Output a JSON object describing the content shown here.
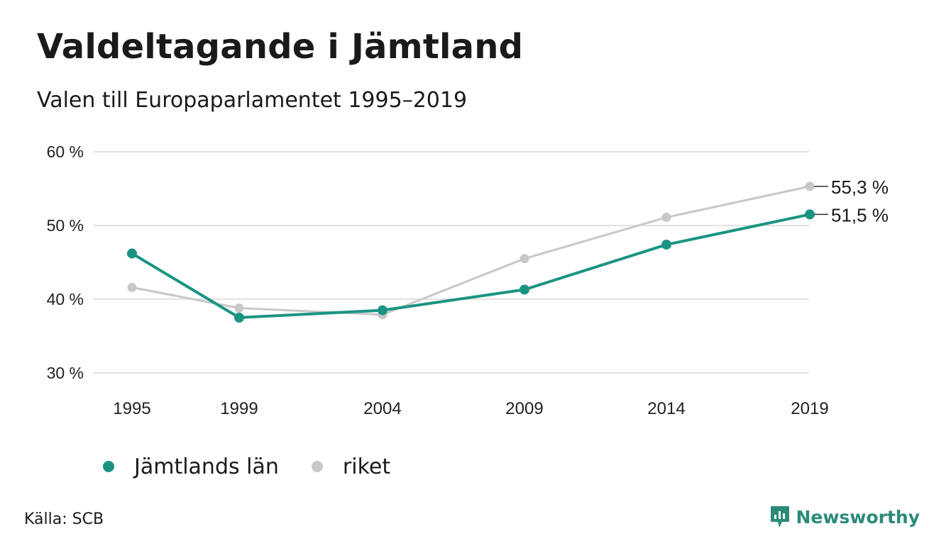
{
  "header": {
    "title": "Valdeltagande i Jämtland",
    "subtitle": "Valen till Europaparlamentet 1995–2019"
  },
  "chart_data": {
    "type": "line",
    "title": "Valdeltagande i Jämtland",
    "subtitle": "Valen till Europaparlamentet 1995–2019",
    "categories": [
      "1995",
      "1999",
      "2004",
      "2009",
      "2014",
      "2019"
    ],
    "yticks": [
      "30 %",
      "40 %",
      "50 %",
      "60 %"
    ],
    "ylim": [
      30,
      60
    ],
    "grid": true,
    "legend_position": "bottom-left",
    "series": [
      {
        "name": "riket",
        "color": "#c8c8c8",
        "values": [
          41.6,
          38.8,
          37.9,
          45.5,
          51.1,
          55.3
        ],
        "end_label": "55,3 %"
      },
      {
        "name": "Jämtlands län",
        "color": "#1a9482",
        "values": [
          46.2,
          37.5,
          38.5,
          41.3,
          47.4,
          51.5
        ],
        "end_label": "51,5 %"
      }
    ]
  },
  "legend": {
    "items": [
      {
        "label": "Jämtlands län",
        "color": "#1a9482"
      },
      {
        "label": "riket",
        "color": "#c8c8c8"
      }
    ]
  },
  "footer": {
    "source": "Källa: SCB",
    "brand": "Newsworthy",
    "brand_icon": "newsworthy-logo-icon"
  }
}
